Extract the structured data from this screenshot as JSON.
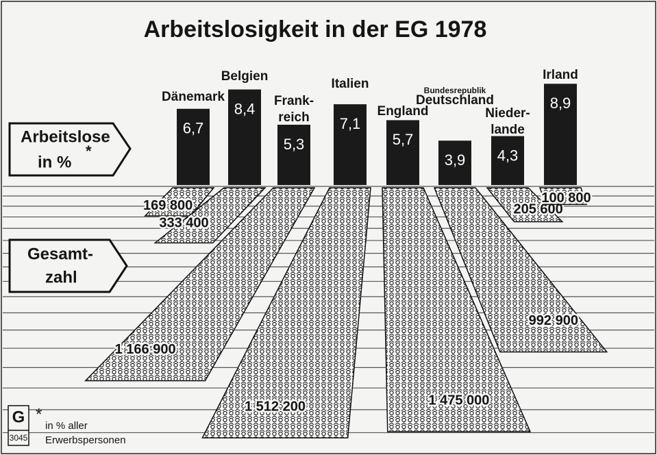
{
  "chart_data": {
    "type": "pictogram",
    "title": "Arbeitslosigkeit in der EG 1978",
    "categories": [
      [
        "Dänemark"
      ],
      [
        "Belgien"
      ],
      [
        "Frank-",
        "reich"
      ],
      [
        "Italien"
      ],
      [
        "England"
      ],
      [
        "Bundesrepublik",
        "Deutschland"
      ],
      [
        "Nieder-",
        "lande"
      ],
      [
        "Irland"
      ]
    ],
    "values": [
      6.7,
      8.4,
      5.3,
      7.1,
      5.7,
      3.9,
      4.3,
      8.9
    ],
    "value_labels": [
      "6,7",
      "8,4",
      "5,3",
      "7,1",
      "5,7",
      "3,9",
      "4,3",
      "8,9"
    ],
    "color": "#1a1a1a",
    "totals": {
      "values": [
        169800,
        333400,
        1166900,
        1512200,
        1475000,
        992900,
        205600,
        100800
      ],
      "value_labels": [
        "169 800",
        "333 400",
        "1 166 900",
        "1 512 200",
        "1 475 000",
        "992 900",
        "205 600",
        "100 800"
      ]
    },
    "label_percent": [
      "Arbeitslose",
      "in %",
      "*"
    ],
    "label_total": [
      "Gesamt-",
      "zahl"
    ],
    "footnote": [
      "*",
      "in % aller",
      "Erwerbspersonen"
    ],
    "logo": "G",
    "source_code": "3045"
  }
}
